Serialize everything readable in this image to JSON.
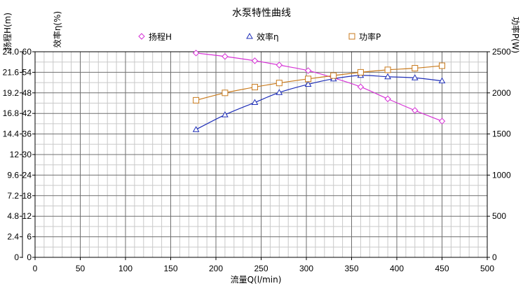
{
  "chart_data": {
    "type": "line",
    "title": "水泵特性曲线",
    "xlabel": "流量Q(l/min)",
    "ylabel_head": "扬程H(m)",
    "ylabel_eff": "效率η(%)",
    "ylabel_power": "功率P(W)",
    "xlim": [
      0,
      500
    ],
    "ylim_head": [
      0,
      24
    ],
    "ylim_eff": [
      0,
      60
    ],
    "ylim_power": [
      0,
      2500
    ],
    "x_ticks": [
      "0",
      "50",
      "100",
      "150",
      "200",
      "250",
      "300",
      "350",
      "400",
      "450",
      "500"
    ],
    "head_ticks": [
      "0",
      "2.4",
      "4.8",
      "7.2",
      "9.6",
      "12",
      "14.4",
      "16.8",
      "19.2",
      "21.6",
      "24.0"
    ],
    "eff_ticks": [
      "0",
      "6",
      "12",
      "18",
      "24",
      "30",
      "36",
      "42",
      "48",
      "54",
      "60"
    ],
    "power_ticks": [
      "0",
      "500",
      "1000",
      "1500",
      "2000",
      "2500"
    ],
    "grid": true,
    "legend_position": "top",
    "series": [
      {
        "name": "扬程H",
        "axis": "head",
        "marker": "diamond",
        "color": "#d633d6",
        "x": [
          178,
          210,
          243,
          270,
          302,
          330,
          360,
          390,
          420,
          450
        ],
        "y": [
          23.85,
          23.45,
          22.95,
          22.45,
          21.8,
          20.95,
          19.9,
          18.5,
          17.15,
          15.9
        ]
      },
      {
        "name": "效率η",
        "axis": "eff",
        "marker": "triangle",
        "color": "#1f2fb8",
        "x": [
          178,
          210,
          243,
          270,
          302,
          330,
          360,
          390,
          420,
          450
        ],
        "y": [
          37.3,
          41.6,
          45.2,
          48.1,
          50.5,
          52.1,
          53.1,
          52.7,
          52.4,
          51.5
        ]
      },
      {
        "name": "功率P",
        "axis": "power",
        "marker": "square",
        "color": "#c97a1c",
        "x": [
          178,
          210,
          243,
          270,
          302,
          330,
          360,
          390,
          420,
          450
        ],
        "y": [
          1910,
          2000,
          2070,
          2120,
          2170,
          2210,
          2250,
          2280,
          2300,
          2330
        ]
      }
    ]
  }
}
